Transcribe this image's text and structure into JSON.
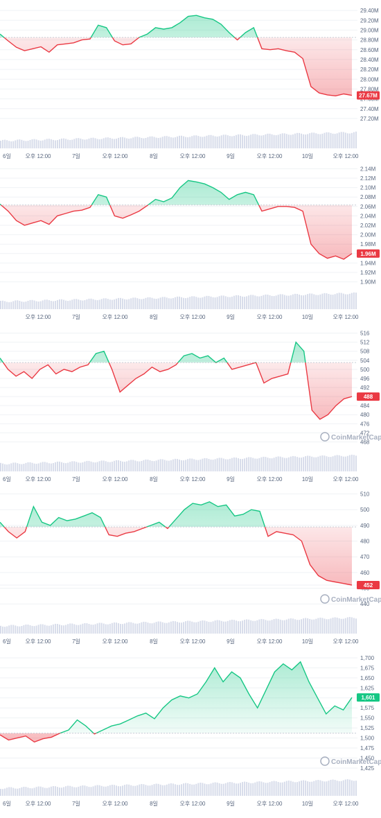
{
  "chart_data": [
    {
      "type": "line",
      "x_labels": [
        "6일",
        "오후 12:00",
        "7일",
        "오후 12:00",
        "8일",
        "오후 12:00",
        "9일",
        "오후 12:00",
        "10일",
        "오후 12:00"
      ],
      "y_ticks": [
        "29.40M",
        "29.20M",
        "29.00M",
        "28.80M",
        "28.60M",
        "28.40M",
        "28.20M",
        "28.00M",
        "27.80M",
        "27.60M",
        "27.40M",
        "27.20M"
      ],
      "ylim": [
        27.1,
        29.5
      ],
      "baseline": 28.85,
      "current_value_label": "27.67M",
      "current_value": 27.67,
      "watermark": "",
      "colors": {
        "up": "#16c784",
        "down": "#ea3943"
      },
      "series": [
        {
          "values": [
            28.92,
            28.78,
            28.65,
            28.58,
            28.62,
            28.66,
            28.55,
            28.7,
            28.72,
            28.74,
            28.8,
            28.82,
            29.1,
            29.05,
            28.78,
            28.7,
            28.72,
            28.85,
            28.92,
            29.05,
            29.02,
            29.05,
            29.15,
            29.28,
            29.3,
            29.25,
            29.22,
            29.12,
            28.95,
            28.8,
            28.95,
            29.05,
            28.62,
            28.6,
            28.62,
            28.58,
            28.55,
            28.42,
            27.85,
            27.72,
            27.68,
            27.66,
            27.7,
            27.67
          ]
        }
      ]
    },
    {
      "type": "line",
      "x_labels": [
        "",
        "오후 12:00",
        "7일",
        "오후 12:00",
        "8일",
        "오후 12:00",
        "9일",
        "오후 12:00",
        "10일",
        "오후 12:00"
      ],
      "y_ticks": [
        "2.14M",
        "2.12M",
        "2.10M",
        "2.08M",
        "2.06M",
        "2.04M",
        "2.02M",
        "2.00M",
        "1.98M",
        "1.96M",
        "1.94M",
        "1.92M",
        "1.90M"
      ],
      "ylim": [
        1.895,
        2.145
      ],
      "baseline": 2.063,
      "current_value_label": "1.96M",
      "current_value": 1.96,
      "watermark": "",
      "colors": {
        "up": "#16c784",
        "down": "#ea3943"
      },
      "series": [
        {
          "values": [
            2.065,
            2.05,
            2.03,
            2.02,
            2.025,
            2.03,
            2.022,
            2.04,
            2.045,
            2.05,
            2.052,
            2.058,
            2.085,
            2.08,
            2.04,
            2.035,
            2.042,
            2.05,
            2.062,
            2.075,
            2.07,
            2.078,
            2.1,
            2.115,
            2.112,
            2.108,
            2.1,
            2.09,
            2.075,
            2.085,
            2.09,
            2.085,
            2.05,
            2.055,
            2.06,
            2.06,
            2.058,
            2.05,
            1.98,
            1.96,
            1.95,
            1.955,
            1.948,
            1.96
          ]
        }
      ]
    },
    {
      "type": "line",
      "x_labels": [
        "6일",
        "오후 12:00",
        "7일",
        "오후 12:00",
        "8일",
        "오후 12:00",
        "9일",
        "오후 12:00",
        "10일",
        "오후 12:00"
      ],
      "y_ticks": [
        "516",
        "512",
        "508",
        "504",
        "500",
        "496",
        "492",
        "488",
        "484",
        "480",
        "476",
        "472",
        "468"
      ],
      "ylim": [
        466,
        518
      ],
      "baseline": 503,
      "current_value_label": "488",
      "current_value": 488,
      "watermark": "CoinMarketCap",
      "colors": {
        "up": "#16c784",
        "down": "#ea3943"
      },
      "series": [
        {
          "values": [
            505,
            500,
            497,
            499,
            496,
            500,
            502,
            498,
            500,
            499,
            501,
            502,
            507,
            508,
            500,
            490,
            493,
            496,
            498,
            501,
            499,
            500,
            502,
            506,
            507,
            505,
            506,
            503,
            505,
            500,
            501,
            502,
            503,
            494,
            496,
            497,
            498,
            512,
            508,
            482,
            478,
            480,
            484,
            487,
            488
          ]
        }
      ]
    },
    {
      "type": "line",
      "x_labels": [
        "6일",
        "오후 12:00",
        "7일",
        "오후 12:00",
        "8일",
        "오후 12:00",
        "9일",
        "오후 12:00",
        "10일",
        "오후 12:00"
      ],
      "y_ticks": [
        "510",
        "500",
        "490",
        "480",
        "470",
        "460",
        "452",
        "450",
        "440"
      ],
      "ylim": [
        437,
        512
      ],
      "baseline": 489,
      "current_value_label": "452",
      "current_value": 452,
      "watermark": "CoinMarketCap",
      "colors": {
        "up": "#16c784",
        "down": "#ea3943"
      },
      "series": [
        {
          "values": [
            492,
            486,
            482,
            486,
            502,
            492,
            490,
            495,
            493,
            494,
            496,
            498,
            495,
            484,
            483,
            485,
            486,
            488,
            490,
            492,
            488,
            494,
            500,
            504,
            503,
            505,
            502,
            503,
            496,
            497,
            500,
            499,
            483,
            486,
            485,
            484,
            480,
            465,
            458,
            455,
            454,
            453,
            452
          ]
        }
      ]
    },
    {
      "type": "line",
      "x_labels": [
        "6일",
        "오후 12:00",
        "7일",
        "오후 12:00",
        "8일",
        "오후 12:00",
        "9일",
        "오후 12:00",
        "10일",
        "오후 12:00"
      ],
      "y_ticks": [
        "1,700",
        "1,675",
        "1,650",
        "1,625",
        "1,600",
        "1,575",
        "1,550",
        "1,525",
        "1,500",
        "1,475",
        "1,450",
        "1,425"
      ],
      "ylim": [
        1418,
        1712
      ],
      "baseline": 1512,
      "current_value_label": "1,601",
      "current_value": 1601,
      "watermark": "CoinMarketCap",
      "colors": {
        "up": "#16c784",
        "down": "#ea3943"
      },
      "series": [
        {
          "values": [
            1508,
            1495,
            1500,
            1505,
            1490,
            1498,
            1502,
            1512,
            1520,
            1545,
            1530,
            1510,
            1520,
            1530,
            1535,
            1545,
            1555,
            1562,
            1548,
            1575,
            1595,
            1605,
            1600,
            1610,
            1640,
            1675,
            1640,
            1665,
            1650,
            1610,
            1575,
            1620,
            1665,
            1685,
            1670,
            1690,
            1640,
            1600,
            1560,
            1580,
            1570,
            1601
          ]
        }
      ]
    }
  ]
}
